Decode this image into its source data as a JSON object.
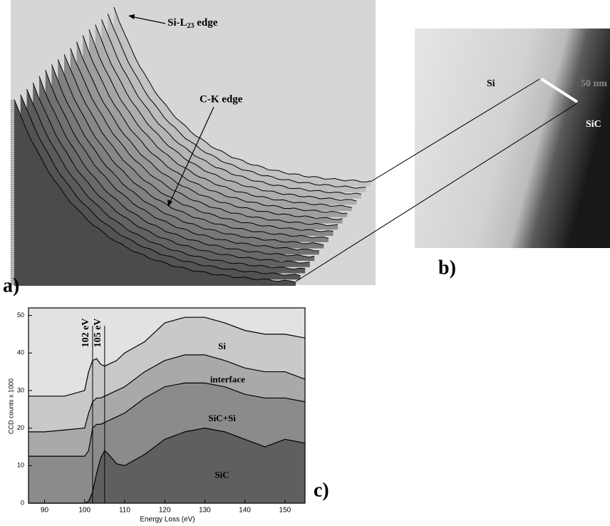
{
  "panels": {
    "a": "a)",
    "b": "b)",
    "c": "c)"
  },
  "panel_a": {
    "si_edge": {
      "main": "Si-L",
      "sub": "23",
      "rest": " edge"
    },
    "ck_edge": "C-K edge"
  },
  "panel_b": {
    "si": "Si",
    "scale": "50 nm",
    "sic": "SiC"
  },
  "chart_data": {
    "type": "area",
    "x_label": "Energy Loss (eV)",
    "y_label": "CCD counts x 1000",
    "x": [
      86,
      90,
      95,
      100,
      101,
      102,
      103,
      104,
      105,
      106,
      108,
      110,
      115,
      120,
      125,
      130,
      135,
      140,
      145,
      150,
      155
    ],
    "series": [
      {
        "name": "Si",
        "color": "#c9c9c9",
        "values": [
          28.5,
          28.5,
          28.5,
          30,
          35,
          38,
          38.5,
          37,
          36.5,
          37,
          38,
          40,
          43,
          48,
          49.5,
          49.5,
          48,
          46,
          45,
          45,
          44
        ]
      },
      {
        "name": "interface",
        "color": "#a9a9a9",
        "values": [
          19,
          19,
          19.5,
          20,
          24,
          27,
          28,
          28,
          28.5,
          29,
          30,
          31,
          35,
          38,
          39.5,
          39.5,
          38,
          36,
          35,
          35,
          33
        ]
      },
      {
        "name": "SiC+Si",
        "color": "#8b8b8b",
        "values": [
          12.5,
          12.5,
          12.5,
          12.5,
          14,
          20,
          21,
          21,
          21.5,
          22,
          23,
          24,
          28,
          31,
          32,
          32,
          31,
          29,
          28,
          28,
          27
        ]
      },
      {
        "name": "SiC",
        "color": "#5f5f5f",
        "values": [
          0,
          0,
          0,
          0,
          0.5,
          3,
          8,
          12,
          14,
          13,
          10.5,
          10,
          13,
          17,
          19,
          20,
          19,
          17,
          15,
          17,
          16
        ]
      }
    ],
    "annotations": [
      {
        "text": "102 eV",
        "x": 102
      },
      {
        "text": "105 eV",
        "x": 105
      }
    ],
    "xlim": [
      86,
      155
    ],
    "xticks": [
      90,
      100,
      110,
      120,
      130,
      140,
      150
    ],
    "ylim": [
      0,
      52
    ],
    "yticks": [
      0,
      10,
      20,
      30,
      40,
      50
    ]
  }
}
